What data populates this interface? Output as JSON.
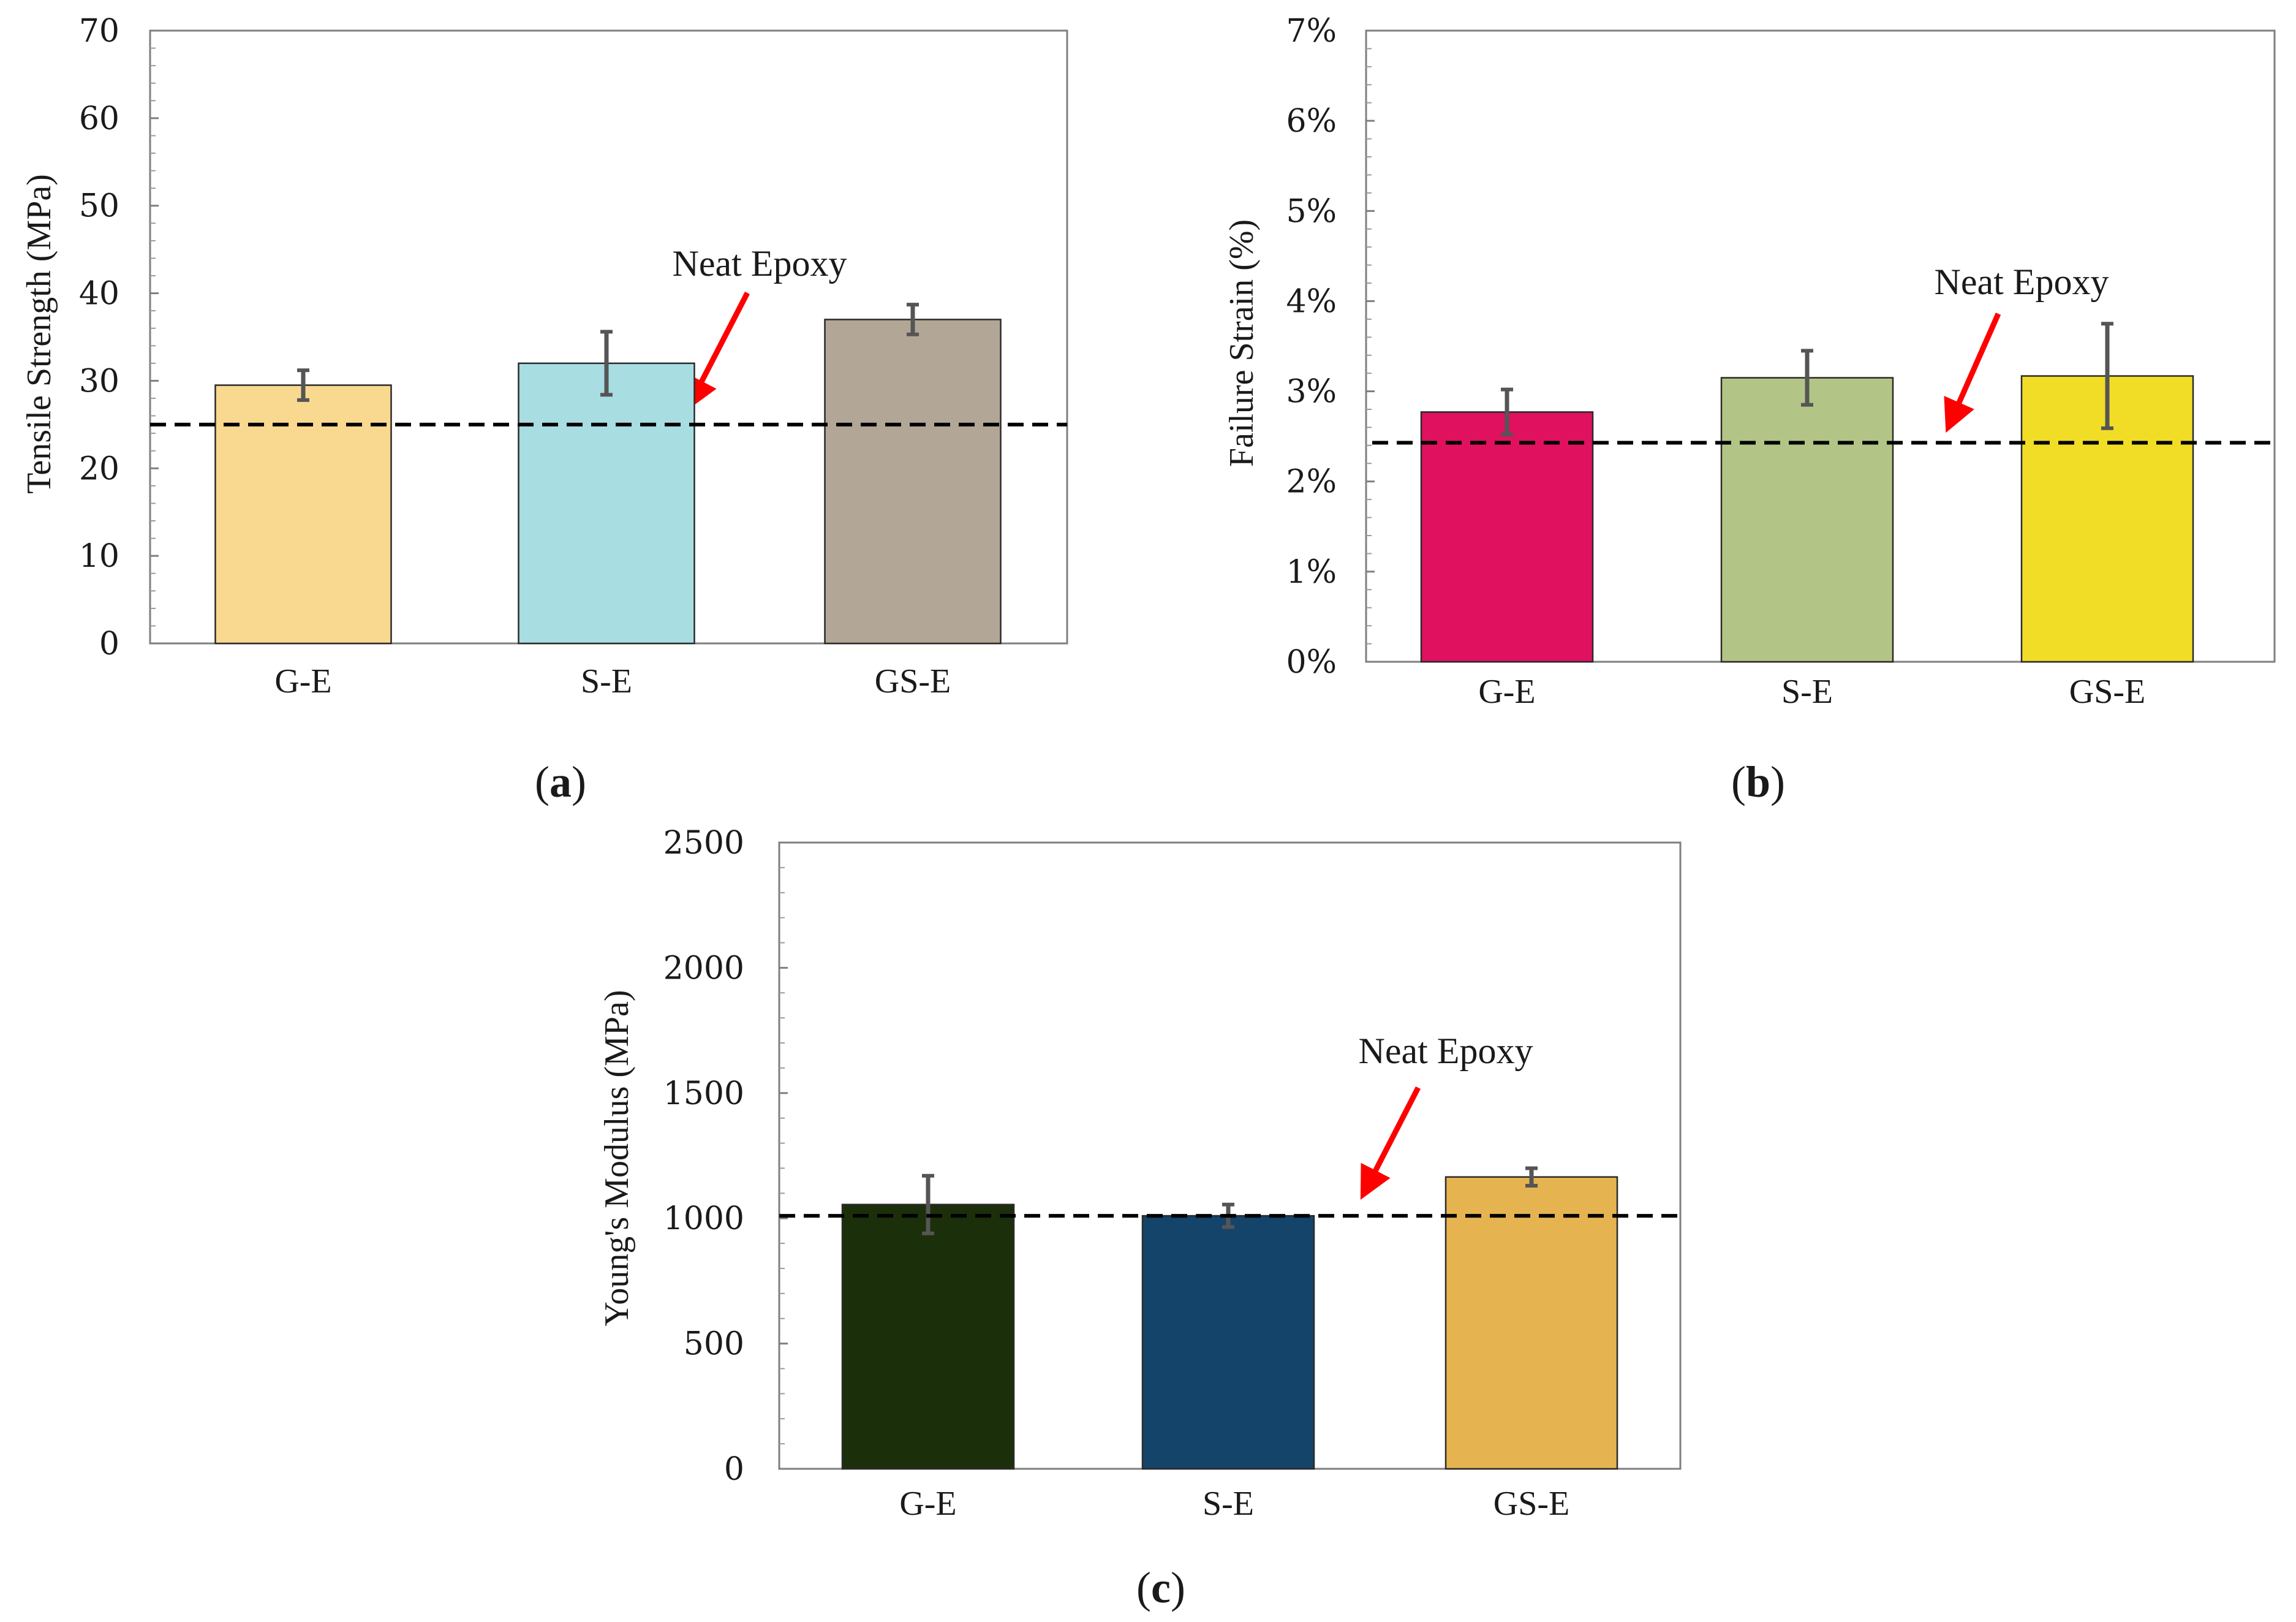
{
  "chart_data": [
    {
      "panel": "a",
      "type": "bar",
      "categories": [
        "G-E",
        "S-E",
        "GS-E"
      ],
      "values": [
        29.5,
        32,
        37
      ],
      "errors": [
        1.7,
        3.6,
        1.7
      ],
      "colors": [
        "#f9d98f",
        "#a8dde2",
        "#b2a796"
      ],
      "ylabel": "Tensile Strength (MPa)",
      "ylim": [
        0,
        70
      ],
      "yticks": [
        0,
        10,
        20,
        30,
        40,
        50,
        60,
        70
      ],
      "ytick_labels": [
        "0",
        "10",
        "20",
        "30",
        "40",
        "50",
        "60",
        "70"
      ],
      "reference": {
        "label": "Neat Epoxy",
        "value": 25
      }
    },
    {
      "panel": "b",
      "type": "bar",
      "categories": [
        "G-E",
        "S-E",
        "GS-E"
      ],
      "values": [
        2.77,
        3.15,
        3.17
      ],
      "errors": [
        0.25,
        0.3,
        0.58
      ],
      "colors": [
        "#e0115f",
        "#b3c586",
        "#f2dd26"
      ],
      "ylabel": "Failure Strain (%)",
      "ylim": [
        0,
        7
      ],
      "yticks": [
        0,
        1,
        2,
        3,
        4,
        5,
        6,
        7
      ],
      "ytick_labels": [
        "0%",
        "1%",
        "2%",
        "3%",
        "4%",
        "5%",
        "6%",
        "7%"
      ],
      "reference": {
        "label": "Neat Epoxy",
        "value": 2.43
      }
    },
    {
      "panel": "c",
      "type": "bar",
      "categories": [
        "G-E",
        "S-E",
        "GS-E"
      ],
      "values": [
        1055,
        1010,
        1165
      ],
      "errors": [
        115,
        45,
        35
      ],
      "colors": [
        "#1b300a",
        "#15446a",
        "#e6b351"
      ],
      "ylabel": "Young's Modulus (MPa)",
      "ylim": [
        0,
        2500
      ],
      "yticks": [
        0,
        500,
        1000,
        1500,
        2000,
        2500
      ],
      "ytick_labels": [
        "0",
        "500",
        "1000",
        "1500",
        "2000",
        "2500"
      ],
      "reference": {
        "label": "Neat Epoxy",
        "value": 1010
      }
    }
  ],
  "panel_labels": {
    "a": {
      "open": "(",
      "letter": "a",
      "close": ")"
    },
    "b": {
      "open": "(",
      "letter": "b",
      "close": ")"
    },
    "c": {
      "open": "(",
      "letter": "c",
      "close": ")"
    }
  }
}
